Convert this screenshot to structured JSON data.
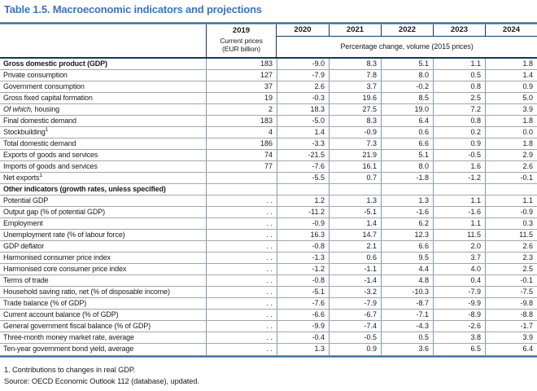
{
  "title": "Table 1.5. Macroeconomic indicators and projections",
  "colors": {
    "title_blue": "#3e73b9",
    "rule_navy": "#17365d",
    "rule_steel_gradient": "#2f5d8a",
    "grid_column_blue": "#7c9bb9",
    "grid_row_gray": "#a6a6a6"
  },
  "header": {
    "col2019": {
      "year": "2019",
      "sub1": "Current prices",
      "sub2": "(EUR billion)"
    },
    "years": [
      "2020",
      "2021",
      "2022",
      "2023",
      "2024"
    ],
    "span_label": "Percentage change, volume (2015 prices)"
  },
  "table": {
    "rows": [
      {
        "label": "Gross domestic product (GDP)",
        "bold": true,
        "cells": [
          "183",
          "-9.0",
          "8.3",
          "5.1",
          "1.1",
          "1.8"
        ]
      },
      {
        "label": "Private consumption",
        "cells": [
          "127",
          "-7.9",
          "7.8",
          "8.0",
          "0.5",
          "1.4"
        ]
      },
      {
        "label": "Government consumption",
        "cells": [
          "37",
          "2.6",
          "3.7",
          "-0.2",
          "0.8",
          "0.9"
        ]
      },
      {
        "label": "Gross fixed capital formation",
        "cells": [
          "19",
          "-0.3",
          "19.6",
          "8.5",
          "2.5",
          "5.0"
        ]
      },
      {
        "label": " housing",
        "italic_prefix": "Of which,",
        "cells": [
          "2",
          "18.3",
          "27.5",
          "19.0",
          "7.2",
          "3.9"
        ]
      },
      {
        "label": "Final domestic demand",
        "cells": [
          "183",
          "-5.0",
          "8.3",
          "6.4",
          "0.8",
          "1.8"
        ]
      },
      {
        "label": "Stockbuilding",
        "sup": "1",
        "cells": [
          "4",
          "1.4",
          "-0.9",
          "0.6",
          "0.2",
          "0.0"
        ]
      },
      {
        "label": "Total domestic demand",
        "cells": [
          "186",
          "-3.3",
          "7.3",
          "6.6",
          "0.9",
          "1.8"
        ]
      },
      {
        "label": "Exports of goods and services",
        "cells": [
          "74",
          "-21.5",
          "21.9",
          "5.1",
          "-0.5",
          "2.9"
        ]
      },
      {
        "label": "Imports of goods and services",
        "cells": [
          "77",
          "-7.6",
          "16.1",
          "8.0",
          "1.6",
          "2.6"
        ]
      },
      {
        "label": "Net exports",
        "sup": "1",
        "cells": [
          "",
          "-5.5",
          "0.7",
          "-1.8",
          "-1.2",
          "-0.1"
        ]
      },
      {
        "label": "Other indicators (growth rates, unless specified)",
        "bold": true,
        "cells": [
          "",
          "",
          "",
          "",
          "",
          ""
        ]
      },
      {
        "label": "Potential GDP",
        "cells": [
          ". .",
          "1.2",
          "1.3",
          "1.3",
          "1.1",
          "1.1"
        ]
      },
      {
        "label": "Output gap (% of potential GDP)",
        "cells": [
          ". .",
          "-11.2",
          "-5.1",
          "-1.6",
          "-1.6",
          "-0.9"
        ]
      },
      {
        "label": "Employment",
        "cells": [
          ". .",
          "-0.9",
          "1.4",
          "6.2",
          "1.1",
          "0.3"
        ]
      },
      {
        "label": "Unemployment rate (% of labour force)",
        "cells": [
          ". .",
          "16.3",
          "14.7",
          "12.3",
          "11.5",
          "11.5"
        ]
      },
      {
        "label": "GDP deflator",
        "cells": [
          ". .",
          "-0.8",
          "2.1",
          "6.6",
          "2.0",
          "2.6"
        ]
      },
      {
        "label": "Harmonised consumer price index",
        "cells": [
          ". .",
          "-1.3",
          "0.6",
          "9.5",
          "3.7",
          "2.3"
        ]
      },
      {
        "label": "Harmonised core consumer price index",
        "cells": [
          ". .",
          "-1.2",
          "-1.1",
          "4.4",
          "4.0",
          "2.5"
        ]
      },
      {
        "label": "Terms of trade",
        "cells": [
          ". .",
          "-0.8",
          "-1.4",
          "4.8",
          "0.4",
          "-0.1"
        ]
      },
      {
        "label": "Household saving ratio, net (% of disposable income)",
        "cells": [
          ". .",
          "-5.1",
          "-3.2",
          "-10.3",
          "-7.9",
          "-7.5"
        ]
      },
      {
        "label": "Trade balance (% of GDP)",
        "cells": [
          ". .",
          "-7.6",
          "-7.9",
          "-8.7",
          "-9.9",
          "-9.8"
        ]
      },
      {
        "label": "Current account balance (% of GDP)",
        "cells": [
          ". .",
          "-6.6",
          "-6.7",
          "-7.1",
          "-8.9",
          "-8.8"
        ]
      },
      {
        "label": "General government fiscal balance (% of GDP)",
        "cells": [
          ". .",
          "-9.9",
          "-7.4",
          "-4.3",
          "-2.6",
          "-1.7"
        ]
      },
      {
        "label": "Three-month money market rate, average",
        "cells": [
          ". .",
          "-0.4",
          "-0.5",
          "0.5",
          "3.8",
          "3.9"
        ]
      },
      {
        "label": "Ten-year government bond yield, average",
        "cells": [
          ". .",
          "1.3",
          "0.9",
          "3.6",
          "6.5",
          "6.4"
        ]
      }
    ]
  },
  "footnotes": [
    "1. Contributions to changes in real GDP.",
    "Source: OECD Economic Outlook 112 (database), updated."
  ]
}
